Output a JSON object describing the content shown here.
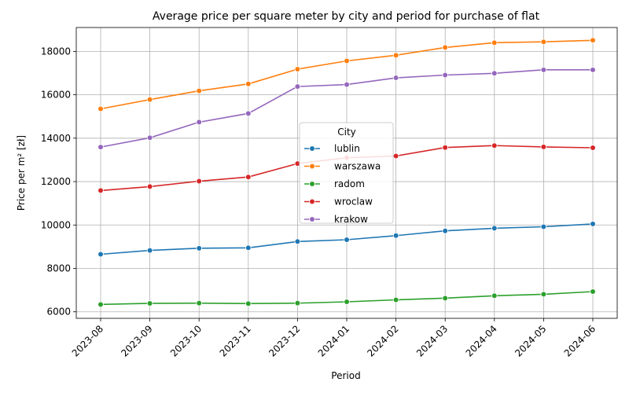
{
  "chart_data": {
    "type": "line",
    "title": "Average price per square meter by city and period for purchase of flat",
    "xlabel": "Period",
    "ylabel": "Price per m² [zł]",
    "categories": [
      "2023-08",
      "2023-09",
      "2023-10",
      "2023-11",
      "2023-12",
      "2024-01",
      "2024-02",
      "2024-03",
      "2024-04",
      "2024-05",
      "2024-06"
    ],
    "ylim": [
      5700,
      19100
    ],
    "yticks": [
      6000,
      8000,
      10000,
      12000,
      14000,
      16000,
      18000
    ],
    "grid": true,
    "legend": {
      "title": "City",
      "placement": "center"
    },
    "series": [
      {
        "name": "lublin",
        "color": "#1f77b4",
        "values": [
          8650,
          8830,
          8930,
          8950,
          9240,
          9320,
          9510,
          9730,
          9850,
          9920,
          10050
        ]
      },
      {
        "name": "warszawa",
        "color": "#ff7f0e",
        "values": [
          15350,
          15780,
          16180,
          16500,
          17180,
          17560,
          17820,
          18180,
          18400,
          18440,
          18510
        ]
      },
      {
        "name": "radom",
        "color": "#2ca02c",
        "values": [
          6340,
          6390,
          6400,
          6380,
          6400,
          6460,
          6550,
          6630,
          6740,
          6810,
          6930
        ]
      },
      {
        "name": "wroclaw",
        "color": "#d62728",
        "values": [
          11590,
          11770,
          12020,
          12210,
          12830,
          13100,
          13180,
          13570,
          13660,
          13600,
          13560
        ]
      },
      {
        "name": "krakow",
        "color": "#9467bd",
        "values": [
          13590,
          14020,
          14740,
          15140,
          16380,
          16470,
          16780,
          16910,
          16990,
          17150,
          17150
        ]
      }
    ]
  }
}
